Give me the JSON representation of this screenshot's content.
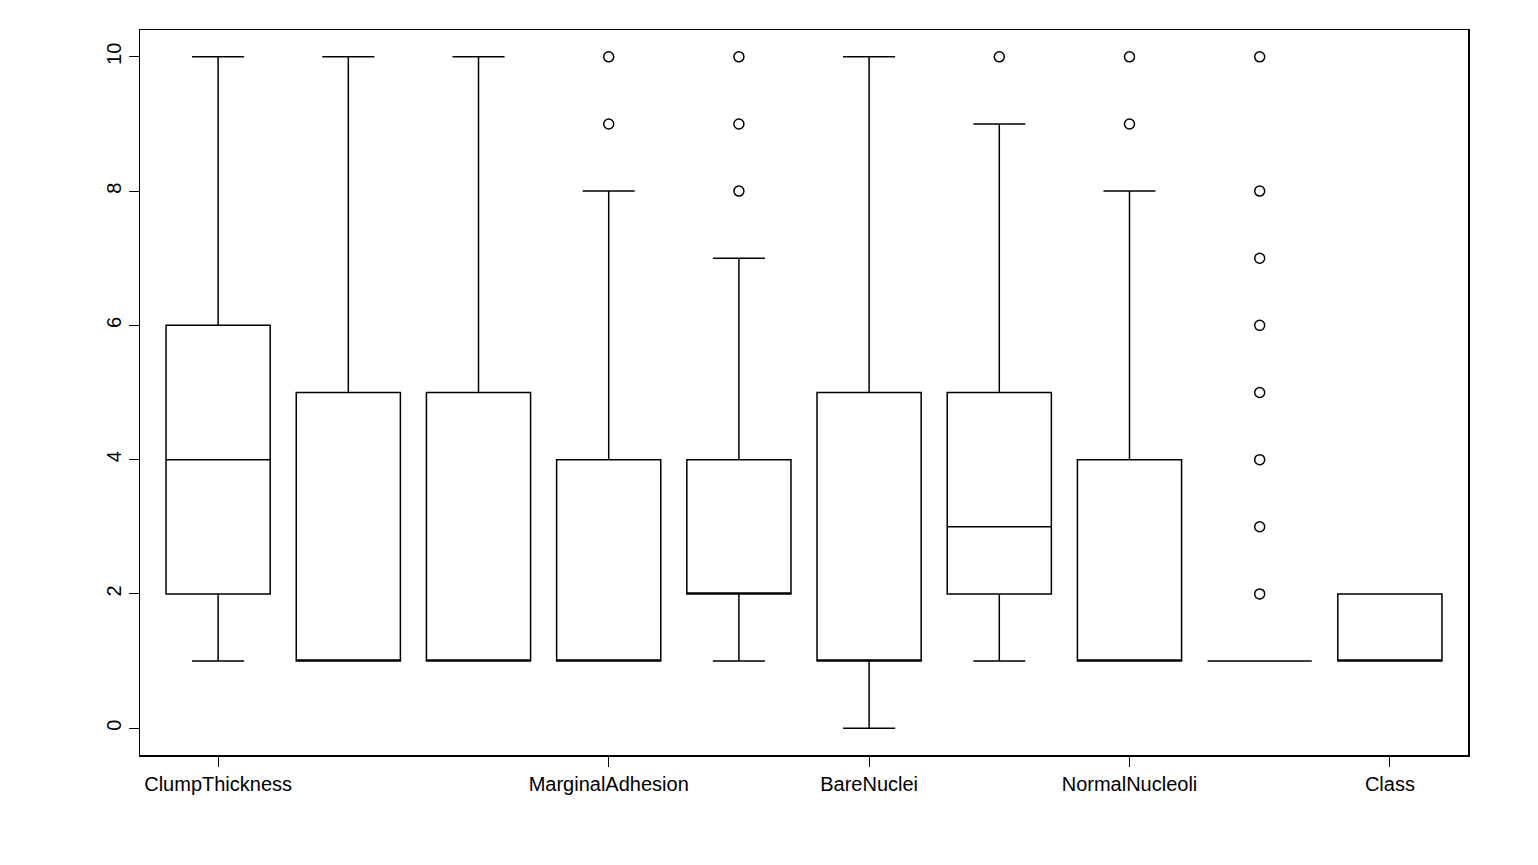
{
  "chart_data": {
    "type": "box",
    "categories": [
      "ClumpThickness",
      null,
      null,
      "MarginalAdhesion",
      null,
      "BareNuclei",
      null,
      "NormalNucleoli",
      null,
      "Class"
    ],
    "lower": [
      1,
      1,
      1,
      1,
      1,
      0,
      1,
      1,
      1,
      1
    ],
    "q1": [
      2,
      1,
      1,
      1,
      2,
      1,
      2,
      1,
      1,
      1
    ],
    "median": [
      4,
      1,
      1,
      1,
      2,
      1,
      3,
      1,
      1,
      1
    ],
    "q3": [
      6,
      5,
      5,
      4,
      4,
      5,
      5,
      4,
      1,
      2
    ],
    "upper": [
      10,
      10,
      10,
      8,
      7,
      10,
      9,
      8,
      1,
      2
    ],
    "outliers": [
      [],
      [],
      [],
      [
        9,
        10
      ],
      [
        8,
        9,
        10
      ],
      [],
      [
        10
      ],
      [
        9,
        10
      ],
      [
        2,
        3,
        4,
        5,
        6,
        7,
        8,
        10
      ],
      []
    ],
    "color": "#000000",
    "marker": "open-circle",
    "ylim": [
      -0.4,
      10.4
    ],
    "yticks": [
      0,
      2,
      4,
      6,
      8,
      10
    ],
    "grid": false
  }
}
